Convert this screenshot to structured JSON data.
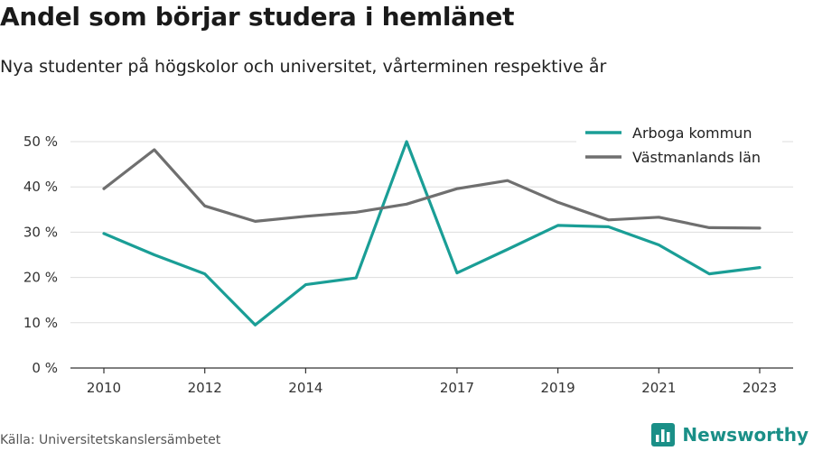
{
  "title": "Andel som börjar studera i hemlänet",
  "subtitle": "Nya studenter på högskolor och universitet, vårterminen respektive år",
  "source": "Källa: Universitetskanslersämbetet",
  "brand": {
    "name": "Newsworthy",
    "icon": "bar-chart-logo-icon"
  },
  "colors": {
    "arboga": "#1a9e96",
    "vastmanland": "#6f6f6f",
    "grid": "#dddddd",
    "axis": "#333333"
  },
  "chart_data": {
    "type": "line",
    "title": "",
    "xlabel": "",
    "ylabel": "",
    "x": [
      2010,
      2011,
      2012,
      2013,
      2014,
      2015,
      2016,
      2017,
      2018,
      2019,
      2020,
      2021,
      2022,
      2023
    ],
    "x_tick_labels": [
      "2010",
      "2012",
      "2014",
      "2017",
      "2019",
      "2021",
      "2023"
    ],
    "y_tick_labels": [
      "0 %",
      "10 %",
      "20 %",
      "30 %",
      "40 %",
      "50 %"
    ],
    "ylim": [
      0,
      50
    ],
    "y_unit": "%",
    "grid": true,
    "legend_position": "top-right",
    "series": [
      {
        "name": "Arboga kommun",
        "color": "#1a9e96",
        "values": [
          29.7,
          25.0,
          20.8,
          9.5,
          18.4,
          19.9,
          50.0,
          21.0,
          26.2,
          31.5,
          31.2,
          27.2,
          20.8,
          22.2
        ]
      },
      {
        "name": "Västmanlands län",
        "color": "#6f6f6f",
        "values": [
          39.6,
          48.2,
          35.8,
          32.4,
          33.5,
          34.4,
          36.2,
          39.6,
          41.4,
          36.6,
          32.7,
          33.3,
          31.0,
          30.9
        ]
      }
    ]
  }
}
